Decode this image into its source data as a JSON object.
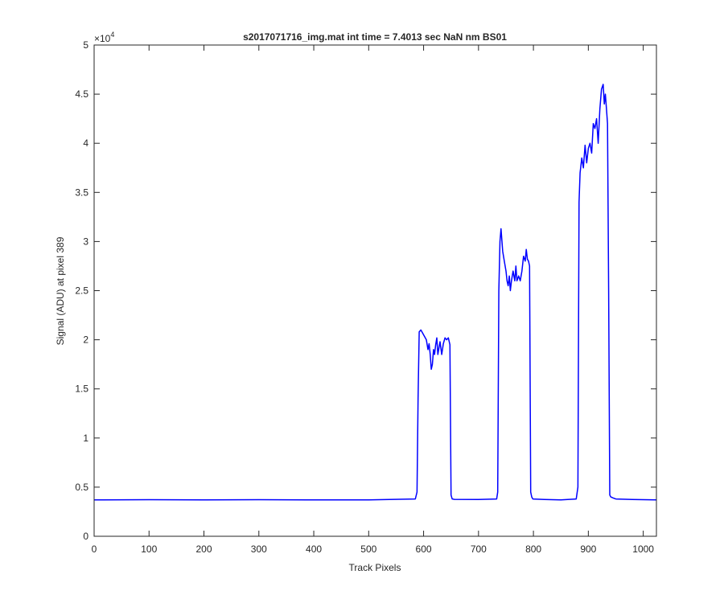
{
  "chart_data": {
    "type": "line",
    "title": "s2017071716_img.mat int time = 7.4013 sec  NaN nm BS01",
    "xlabel": "Track Pixels",
    "ylabel": "Signal (ADU) at pixel 389",
    "y_exponent_label": "×10",
    "y_exponent_power": "4",
    "xlim": [
      0,
      1024
    ],
    "ylim": [
      0,
      50000
    ],
    "x_ticks": [
      0,
      100,
      200,
      300,
      400,
      500,
      600,
      700,
      800,
      900,
      1000
    ],
    "x_tick_labels": [
      "0",
      "100",
      "200",
      "300",
      "400",
      "500",
      "600",
      "700",
      "800",
      "900",
      "1000"
    ],
    "y_ticks": [
      0,
      5000,
      10000,
      15000,
      20000,
      25000,
      30000,
      35000,
      40000,
      45000,
      50000
    ],
    "y_tick_labels": [
      "0",
      "0.5",
      "1",
      "1.5",
      "2",
      "2.5",
      "3",
      "3.5",
      "4",
      "4.5",
      "5"
    ],
    "grid": false,
    "line_color": "#0000ff",
    "series": [
      {
        "x": [
          0,
          100,
          200,
          300,
          400,
          500,
          585,
          588,
          590,
          592,
          595,
          600,
          605,
          608,
          610,
          612,
          614,
          616,
          618,
          620,
          622,
          624,
          626,
          628,
          630,
          633,
          636,
          639,
          642,
          645,
          648,
          650,
          652,
          654,
          656,
          700,
          733,
          735,
          737,
          739,
          741,
          744,
          747,
          750,
          752,
          754,
          756,
          758,
          760,
          763,
          766,
          768,
          770,
          773,
          776,
          779,
          782,
          785,
          787,
          789,
          791,
          793,
          795,
          797,
          799,
          820,
          850,
          878,
          881,
          883,
          885,
          888,
          891,
          894,
          897,
          900,
          903,
          906,
          909,
          912,
          915,
          918,
          921,
          924,
          927,
          929,
          931,
          933,
          935,
          937,
          939,
          941,
          943,
          945,
          950,
          980,
          1024
        ],
        "y": [
          3700,
          3720,
          3700,
          3720,
          3700,
          3700,
          3800,
          4500,
          14000,
          20800,
          21000,
          20500,
          20000,
          19000,
          19600,
          18500,
          17000,
          17500,
          19000,
          18500,
          19500,
          20200,
          18500,
          19200,
          19800,
          18500,
          19600,
          20200,
          20000,
          20200,
          19500,
          4200,
          3800,
          3780,
          3760,
          3750,
          3800,
          4500,
          25000,
          30000,
          31300,
          29000,
          28000,
          27000,
          26000,
          25500,
          26500,
          25000,
          26000,
          27000,
          26000,
          27500,
          26000,
          26500,
          26000,
          27000,
          28500,
          28000,
          29200,
          28200,
          28000,
          27500,
          4500,
          4000,
          3800,
          3750,
          3700,
          3800,
          5000,
          34000,
          37000,
          38500,
          37500,
          39800,
          38000,
          39500,
          40000,
          39000,
          42000,
          41500,
          42500,
          40000,
          43500,
          45500,
          46000,
          44000,
          45000,
          43500,
          42000,
          25000,
          4200,
          4000,
          3950,
          3900,
          3800,
          3750,
          3700
        ]
      }
    ]
  }
}
